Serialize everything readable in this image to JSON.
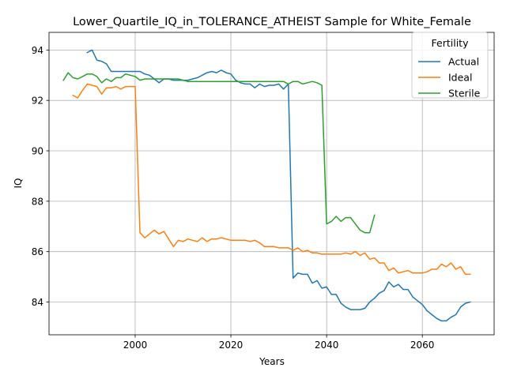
{
  "chart_data": {
    "type": "line",
    "title": "Lower_Quartile_IQ_in_TOLERANCE_ATHEIST Sample for White_Female",
    "xlabel": "Years",
    "ylabel": "IQ",
    "xlim": [
      1982,
      2075
    ],
    "ylim": [
      82.7,
      94.7
    ],
    "xticks": [
      2000,
      2020,
      2040,
      2060
    ],
    "yticks": [
      84,
      86,
      88,
      90,
      92,
      94
    ],
    "grid": true,
    "legend": {
      "title": "Fertility",
      "placement": "top-right"
    },
    "series": [
      {
        "name": "Actual",
        "color": "#1f77b4",
        "x": [
          1990,
          1991,
          1992,
          1993,
          1994,
          1995,
          1996,
          1997,
          1998,
          1999,
          2000,
          2001,
          2002,
          2003,
          2004,
          2005,
          2006,
          2007,
          2008,
          2009,
          2010,
          2011,
          2012,
          2013,
          2014,
          2015,
          2016,
          2017,
          2018,
          2019,
          2020,
          2021,
          2022,
          2023,
          2024,
          2025,
          2026,
          2027,
          2028,
          2029,
          2030,
          2031,
          2032,
          2033,
          2034,
          2035,
          2036,
          2037,
          2038,
          2039,
          2040,
          2041,
          2042,
          2043,
          2044,
          2045,
          2046,
          2047,
          2048,
          2049,
          2050,
          2051,
          2052,
          2053,
          2054,
          2055,
          2056,
          2057,
          2058,
          2059,
          2060,
          2061,
          2062,
          2063,
          2064,
          2065,
          2066,
          2067,
          2068,
          2069,
          2070
        ],
        "y": [
          93.9,
          94.0,
          93.6,
          93.55,
          93.45,
          93.15,
          93.15,
          93.15,
          93.15,
          93.15,
          93.15,
          93.15,
          93.05,
          93.0,
          92.85,
          92.7,
          92.85,
          92.85,
          92.8,
          92.8,
          92.8,
          92.8,
          92.85,
          92.9,
          93.0,
          93.1,
          93.15,
          93.1,
          93.2,
          93.1,
          93.05,
          92.8,
          92.7,
          92.65,
          92.65,
          92.5,
          92.65,
          92.55,
          92.6,
          92.6,
          92.65,
          92.45,
          92.65,
          84.95,
          85.15,
          85.1,
          85.1,
          84.75,
          84.85,
          84.55,
          84.6,
          84.3,
          84.3,
          83.95,
          83.8,
          83.7,
          83.7,
          83.7,
          83.75,
          84.0,
          84.15,
          84.35,
          84.45,
          84.8,
          84.6,
          84.7,
          84.5,
          84.5,
          84.2,
          84.05,
          83.9,
          83.65,
          83.5,
          83.35,
          83.25,
          83.25,
          83.4,
          83.5,
          83.8,
          83.95,
          84.0
        ]
      },
      {
        "name": "Ideal",
        "color": "#ff7f0e",
        "x": [
          1987,
          1988,
          1989,
          1990,
          1991,
          1992,
          1993,
          1994,
          1995,
          1996,
          1997,
          1998,
          1999,
          2000,
          2001,
          2002,
          2003,
          2004,
          2005,
          2006,
          2007,
          2008,
          2009,
          2010,
          2011,
          2012,
          2013,
          2014,
          2015,
          2016,
          2017,
          2018,
          2019,
          2020,
          2021,
          2022,
          2023,
          2024,
          2025,
          2026,
          2027,
          2028,
          2029,
          2030,
          2031,
          2032,
          2033,
          2034,
          2035,
          2036,
          2037,
          2038,
          2039,
          2040,
          2041,
          2042,
          2043,
          2044,
          2045,
          2046,
          2047,
          2048,
          2049,
          2050,
          2051,
          2052,
          2053,
          2054,
          2055,
          2056,
          2057,
          2058,
          2059,
          2060,
          2061,
          2062,
          2063,
          2064,
          2065,
          2066,
          2067,
          2068,
          2069,
          2070
        ],
        "y": [
          92.2,
          92.1,
          92.4,
          92.65,
          92.6,
          92.55,
          92.25,
          92.5,
          92.5,
          92.55,
          92.45,
          92.55,
          92.55,
          92.55,
          86.75,
          86.55,
          86.7,
          86.85,
          86.7,
          86.8,
          86.5,
          86.2,
          86.45,
          86.4,
          86.5,
          86.45,
          86.4,
          86.55,
          86.4,
          86.5,
          86.5,
          86.55,
          86.5,
          86.45,
          86.45,
          86.45,
          86.45,
          86.4,
          86.45,
          86.35,
          86.2,
          86.2,
          86.2,
          86.15,
          86.15,
          86.15,
          86.05,
          86.15,
          86.0,
          86.05,
          85.95,
          85.95,
          85.9,
          85.9,
          85.9,
          85.9,
          85.9,
          85.95,
          85.9,
          86.0,
          85.85,
          85.95,
          85.7,
          85.75,
          85.55,
          85.55,
          85.25,
          85.35,
          85.15,
          85.2,
          85.25,
          85.15,
          85.15,
          85.15,
          85.2,
          85.3,
          85.3,
          85.5,
          85.4,
          85.55,
          85.3,
          85.4,
          85.1,
          85.1
        ]
      },
      {
        "name": "Sterile",
        "color": "#2ca02c",
        "x": [
          1985,
          1986,
          1987,
          1988,
          1989,
          1990,
          1991,
          1992,
          1993,
          1994,
          1995,
          1996,
          1997,
          1998,
          1999,
          2000,
          2001,
          2002,
          2003,
          2004,
          2005,
          2006,
          2007,
          2008,
          2009,
          2010,
          2011,
          2012,
          2013,
          2014,
          2015,
          2016,
          2017,
          2018,
          2019,
          2020,
          2021,
          2022,
          2023,
          2024,
          2025,
          2026,
          2027,
          2028,
          2029,
          2030,
          2031,
          2032,
          2033,
          2034,
          2035,
          2036,
          2037,
          2038,
          2039,
          2040,
          2041,
          2042,
          2043,
          2044,
          2045,
          2046,
          2047,
          2048,
          2049,
          2050
        ],
        "y": [
          92.8,
          93.1,
          92.9,
          92.85,
          92.95,
          93.05,
          93.05,
          92.95,
          92.7,
          92.85,
          92.75,
          92.9,
          92.9,
          93.05,
          93.0,
          92.95,
          92.8,
          92.85,
          92.85,
          92.85,
          92.85,
          92.85,
          92.85,
          92.85,
          92.85,
          92.8,
          92.75,
          92.75,
          92.75,
          92.75,
          92.75,
          92.75,
          92.75,
          92.75,
          92.75,
          92.75,
          92.75,
          92.75,
          92.75,
          92.75,
          92.75,
          92.75,
          92.75,
          92.75,
          92.75,
          92.75,
          92.75,
          92.65,
          92.75,
          92.75,
          92.65,
          92.7,
          92.75,
          92.7,
          92.6,
          87.1,
          87.2,
          87.4,
          87.2,
          87.35,
          87.35,
          87.1,
          86.85,
          86.75,
          86.75,
          87.45
        ]
      }
    ]
  }
}
